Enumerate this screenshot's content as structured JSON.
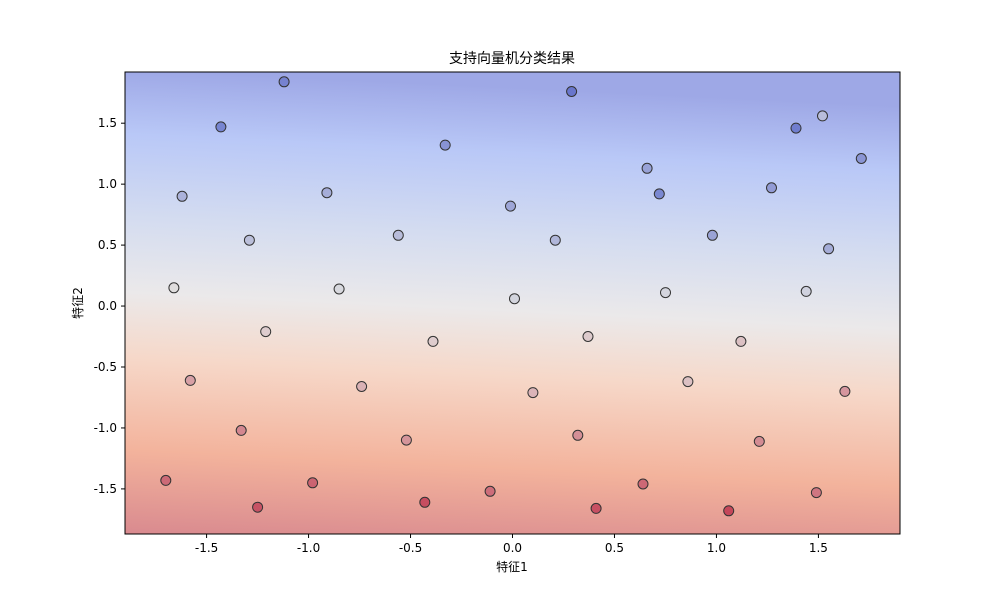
{
  "chart_data": {
    "type": "scatter",
    "title": "支持向量机分类结果",
    "xlabel": "特征1",
    "ylabel": "特征2",
    "xlim": [
      -1.9,
      1.9
    ],
    "ylim": [
      -1.87,
      1.92
    ],
    "xticks": [
      -1.5,
      -1.0,
      -0.5,
      0.0,
      0.5,
      1.0,
      1.5
    ],
    "xtick_labels": [
      "-1.5",
      "-1.0",
      "-0.5",
      "0.0",
      "0.5",
      "1.0",
      "1.5"
    ],
    "yticks": [
      -1.5,
      -1.0,
      -0.5,
      0.0,
      0.5,
      1.0,
      1.5
    ],
    "ytick_labels": [
      "-1.5",
      "-1.0",
      "-0.5",
      "0.0",
      "0.5",
      "1.0",
      "1.5"
    ],
    "grid": false,
    "legend": "none",
    "colormap": "coolwarm",
    "background": "filled decision-function contours, red at bottom-left rising to blue at top-right",
    "colors": {
      "class_low": "#b40426",
      "class_high": "#3b4cc0",
      "marker_edge": "#333333"
    },
    "points": [
      [
        -1.12,
        1.84,
        0.85
      ],
      [
        0.29,
        1.76,
        0.9
      ],
      [
        1.52,
        1.56,
        0.6
      ],
      [
        -1.43,
        1.47,
        0.86
      ],
      [
        -0.33,
        1.32,
        0.8
      ],
      [
        0.66,
        1.13,
        0.74
      ],
      [
        1.39,
        1.46,
        0.88
      ],
      [
        1.71,
        1.21,
        0.79
      ],
      [
        -1.62,
        0.9,
        0.68
      ],
      [
        -0.91,
        0.93,
        0.7
      ],
      [
        -0.01,
        0.82,
        0.73
      ],
      [
        0.72,
        0.92,
        0.86
      ],
      [
        1.27,
        0.97,
        0.77
      ],
      [
        -1.29,
        0.54,
        0.63
      ],
      [
        -0.56,
        0.58,
        0.64
      ],
      [
        0.21,
        0.54,
        0.67
      ],
      [
        0.98,
        0.58,
        0.75
      ],
      [
        1.55,
        0.47,
        0.71
      ],
      [
        -1.66,
        0.15,
        0.49
      ],
      [
        -0.85,
        0.14,
        0.53
      ],
      [
        0.01,
        0.06,
        0.55
      ],
      [
        0.75,
        0.11,
        0.54
      ],
      [
        1.44,
        0.12,
        0.56
      ],
      [
        -1.21,
        -0.21,
        0.45
      ],
      [
        -0.39,
        -0.29,
        0.45
      ],
      [
        0.37,
        -0.25,
        0.44
      ],
      [
        1.12,
        -0.29,
        0.41
      ],
      [
        -1.58,
        -0.61,
        0.33
      ],
      [
        -0.74,
        -0.66,
        0.38
      ],
      [
        0.1,
        -0.71,
        0.39
      ],
      [
        0.86,
        -0.62,
        0.42
      ],
      [
        1.63,
        -0.7,
        0.3
      ],
      [
        -1.33,
        -1.02,
        0.27
      ],
      [
        -0.52,
        -1.1,
        0.31
      ],
      [
        0.32,
        -1.06,
        0.29
      ],
      [
        1.21,
        -1.11,
        0.28
      ],
      [
        -1.7,
        -1.43,
        0.2
      ],
      [
        -0.98,
        -1.45,
        0.18
      ],
      [
        -0.11,
        -1.52,
        0.21
      ],
      [
        0.64,
        -1.46,
        0.19
      ],
      [
        1.49,
        -1.53,
        0.23
      ],
      [
        -1.25,
        -1.65,
        0.14
      ],
      [
        -0.43,
        -1.61,
        0.12
      ],
      [
        0.41,
        -1.66,
        0.13
      ],
      [
        1.06,
        -1.68,
        0.1
      ]
    ]
  }
}
